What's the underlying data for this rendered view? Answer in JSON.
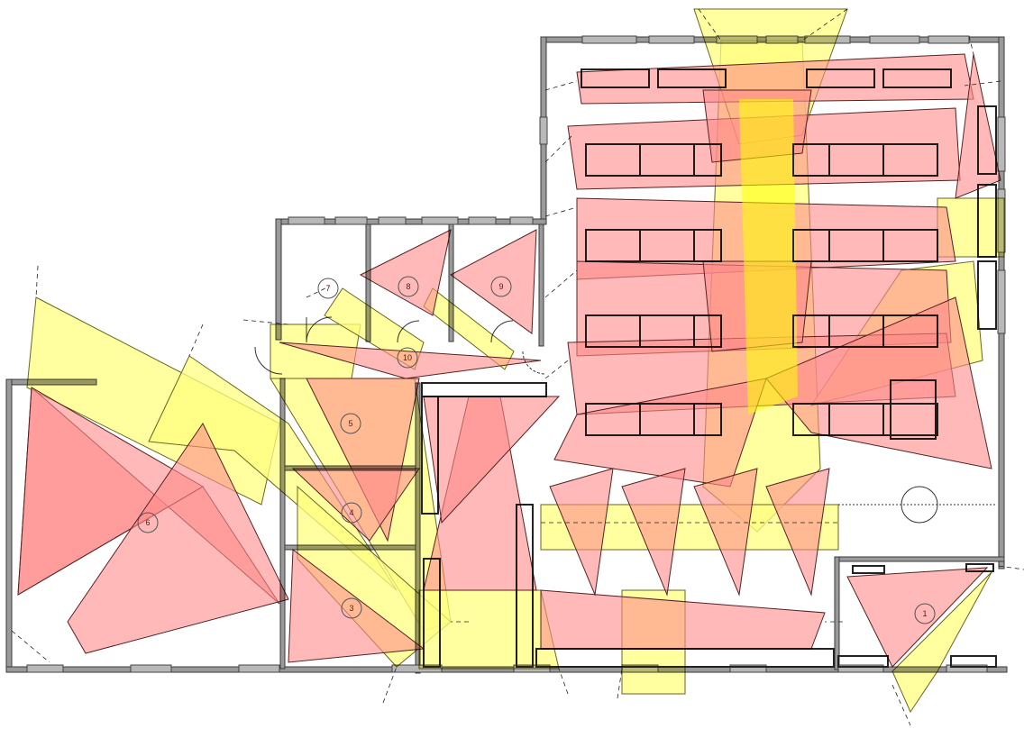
{
  "colors": {
    "wall": "#8a8a8a",
    "wall_edge": "#3a3a3a",
    "furniture": "#222222",
    "red_zone": "#ff8a8a",
    "yellow_zone": "#ffff80",
    "red_stroke": "#552222",
    "yellow_stroke": "#666622",
    "label_ring": "#555555"
  },
  "rooms": [
    {
      "id": "1",
      "label": "1"
    },
    {
      "id": "3",
      "label": "3"
    },
    {
      "id": "4",
      "label": "4"
    },
    {
      "id": "5",
      "label": "5"
    },
    {
      "id": "6",
      "label": "6"
    },
    {
      "id": "7",
      "label": "7"
    },
    {
      "id": "8",
      "label": "8"
    },
    {
      "id": "9",
      "label": "9"
    },
    {
      "id": "10",
      "label": "10"
    }
  ]
}
